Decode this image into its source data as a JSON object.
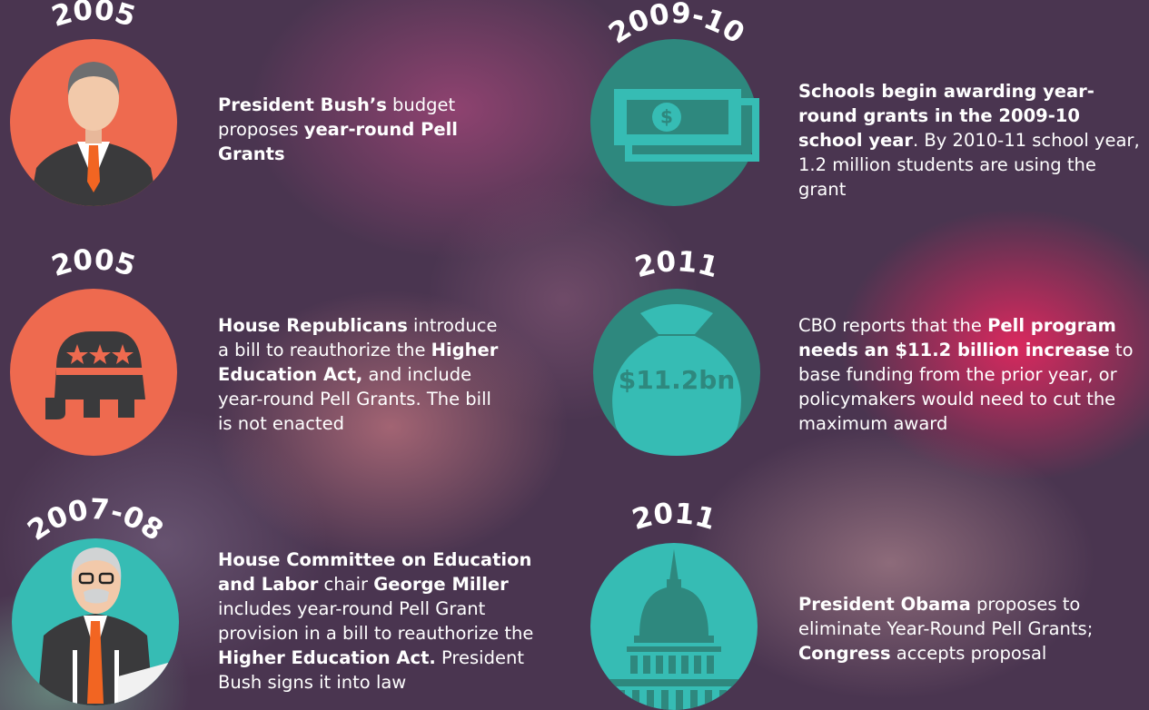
{
  "items": [
    {
      "year": "2005",
      "text": [
        {
          "text": "President Bush’s",
          "bold": true
        },
        {
          "text": " budget proposes ",
          "bold": false
        },
        {
          "text": "year-round Pell Grants",
          "bold": true
        }
      ]
    },
    {
      "year": "2005",
      "text": [
        {
          "text": "House Republicans",
          "bold": true
        },
        {
          "text": " introduce a bill to reauthorize the ",
          "bold": false
        },
        {
          "text": "Higher Education Act,",
          "bold": true
        },
        {
          "text": " and include year-round Pell Grants. The bill is not enacted",
          "bold": false
        }
      ]
    },
    {
      "year": "2007-08",
      "text": [
        {
          "text": "House Committee on Education and Labor",
          "bold": true
        },
        {
          "text": " chair ",
          "bold": false
        },
        {
          "text": "George Miller",
          "bold": true
        },
        {
          "text": " includes year-round Pell Grant provision in a bill to reauthorize the ",
          "bold": false
        },
        {
          "text": "Higher Education Act.",
          "bold": true
        },
        {
          "text": " President Bush signs it into law",
          "bold": false
        }
      ]
    },
    {
      "year": "2009-10",
      "text": [
        {
          "text": "Schools begin awarding year-round grants in the 2009-10 school year",
          "bold": true
        },
        {
          "text": ". By 2010-11 school year, 1.2 million students are using the grant",
          "bold": false
        }
      ]
    },
    {
      "year": "2011",
      "icon_label": "$11.2bn",
      "text": [
        {
          "text": "CBO reports that the ",
          "bold": false
        },
        {
          "text": "Pell program needs an $11.2 billion increase",
          "bold": true
        },
        {
          "text": " to base funding from the prior year, or policymakers would need to cut the maximum award",
          "bold": false
        }
      ]
    },
    {
      "year": "2011",
      "text": [
        {
          "text": "President Obama",
          "bold": true
        },
        {
          "text": " proposes to eliminate Year-Round Pell Grants; ",
          "bold": false
        },
        {
          "text": "Congress",
          "bold": true
        },
        {
          "text": " accepts proposal",
          "bold": false
        }
      ]
    }
  ]
}
